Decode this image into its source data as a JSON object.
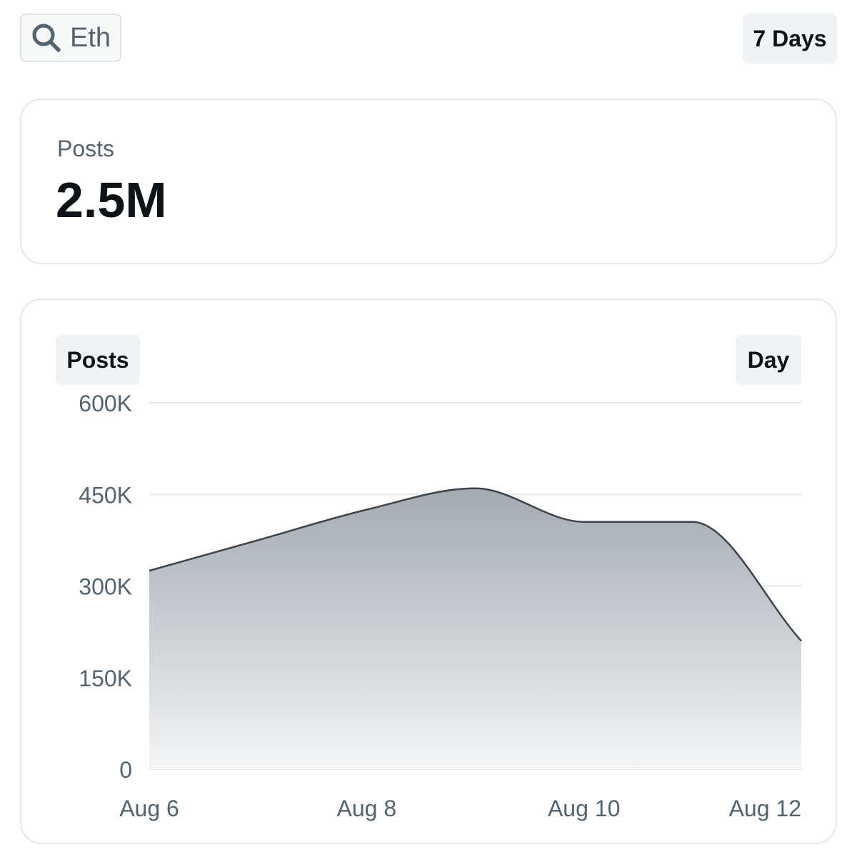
{
  "search": {
    "query": "Eth",
    "icon": "search-icon"
  },
  "range": {
    "label": "7 Days"
  },
  "summary": {
    "label": "Posts",
    "value": "2.5M"
  },
  "chart_card": {
    "metric_label": "Posts",
    "interval_label": "Day"
  },
  "colors": {
    "line": "#3d454c",
    "fill_top": "#a3aab1",
    "fill_bottom": "#f4f5f6",
    "grid": "#e3e8ea",
    "tick": "#536471"
  },
  "chart_data": {
    "type": "area",
    "title": "Posts",
    "xlabel": "",
    "ylabel": "",
    "x": [
      "Aug 6",
      "Aug 7",
      "Aug 8",
      "Aug 9",
      "Aug 10",
      "Aug 11",
      "Aug 12"
    ],
    "series": [
      {
        "name": "Posts",
        "values": [
          325000,
          375000,
          425000,
          460000,
          405000,
          405000,
          210000
        ]
      }
    ],
    "x_ticks": [
      "Aug 6",
      "Aug 8",
      "Aug 10",
      "Aug 12"
    ],
    "y_ticks": [
      0,
      150000,
      300000,
      450000,
      600000
    ],
    "y_tick_labels": [
      "0",
      "150K",
      "300K",
      "450K",
      "600K"
    ],
    "ylim": [
      0,
      600000
    ],
    "grid": true,
    "legend": "none"
  }
}
